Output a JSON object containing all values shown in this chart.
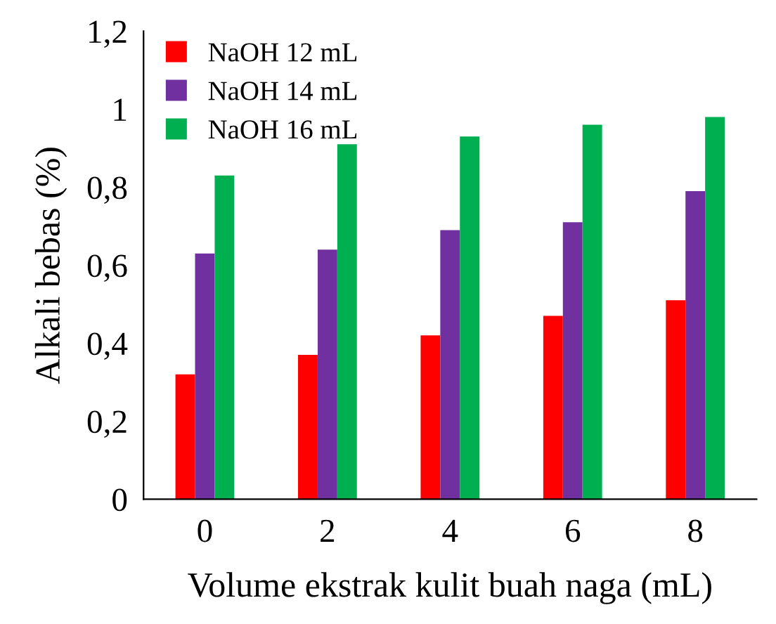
{
  "chart_data": {
    "type": "bar",
    "xlabel": "Volume ekstrak kulit buah naga (mL)",
    "ylabel": "Alkali bebas (%)",
    "categories": [
      "0",
      "2",
      "4",
      "6",
      "8"
    ],
    "series": [
      {
        "name": "NaOH 12 mL",
        "color": "#ff0000",
        "values": [
          0.32,
          0.37,
          0.42,
          0.47,
          0.51
        ]
      },
      {
        "name": "NaOH 14 mL",
        "color": "#7030a0",
        "values": [
          0.63,
          0.64,
          0.69,
          0.71,
          0.79
        ]
      },
      {
        "name": "NaOH 16 mL",
        "color": "#00b050",
        "values": [
          0.83,
          0.91,
          0.93,
          0.96,
          0.98
        ]
      }
    ],
    "ylim": [
      0,
      1.2
    ],
    "yticks": [
      0,
      {
        "value": 0.2,
        "label": "0,2"
      },
      {
        "value": 0.4,
        "label": "0,4"
      },
      {
        "value": 0.6,
        "label": "0,6"
      },
      {
        "value": 0.8,
        "label": "0,8"
      },
      1,
      {
        "value": 1.2,
        "label": "1,2"
      }
    ],
    "grid": false,
    "legend": "top left"
  }
}
